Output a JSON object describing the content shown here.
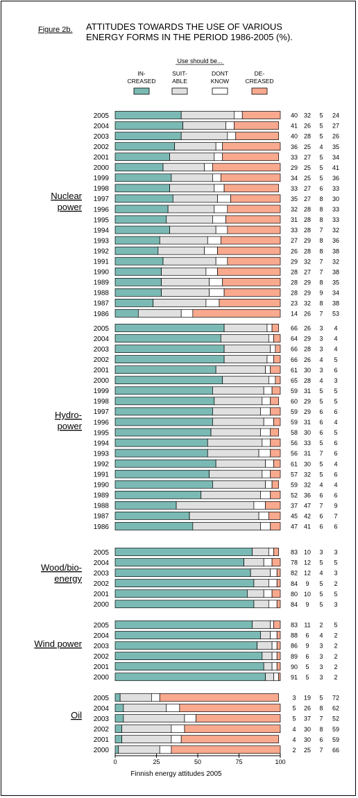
{
  "figure": {
    "label": "Figure 2b.",
    "title_line1": "ATTITUDES TOWARDS THE USE OF VARIOUS",
    "title_line2": "ENERGY FORMS IN THE PERIOD 1986-2005 (%)."
  },
  "chart_data": {
    "type": "bar",
    "stacked": true,
    "orientation": "horizontal",
    "legend_title": "Use should be...",
    "series": [
      {
        "label_lines": [
          "IN-",
          "CREASED"
        ],
        "color": "#7bbab4"
      },
      {
        "label_lines": [
          "SUIT-",
          "ABLE"
        ],
        "color": "#e0e0e0"
      },
      {
        "label_lines": [
          "DONT",
          "KNOW"
        ],
        "color": "#ffffff"
      },
      {
        "label_lines": [
          "DE-",
          "CREASED"
        ],
        "color": "#f9a98e"
      }
    ],
    "xlabel": "Finnish energy attitudes 2005",
    "xlim": [
      0,
      100
    ],
    "xticks": [
      "0",
      "25",
      "50",
      "75",
      "100"
    ],
    "groups": [
      {
        "label_lines": [
          "Nuclear",
          "power"
        ],
        "rows": [
          {
            "year": "2005",
            "values": [
              40,
              32,
              5,
              24
            ]
          },
          {
            "year": "2004",
            "values": [
              41,
              26,
              5,
              27
            ]
          },
          {
            "year": "2003",
            "values": [
              40,
              28,
              5,
              26
            ]
          },
          {
            "year": "2002",
            "values": [
              36,
              25,
              4,
              35
            ]
          },
          {
            "year": "2001",
            "values": [
              33,
              27,
              5,
              34
            ]
          },
          {
            "year": "2000",
            "values": [
              29,
              25,
              5,
              41
            ]
          },
          {
            "year": "1999",
            "values": [
              34,
              25,
              5,
              36
            ]
          },
          {
            "year": "1998",
            "values": [
              33,
              27,
              6,
              33
            ]
          },
          {
            "year": "1997",
            "values": [
              35,
              27,
              8,
              30
            ]
          },
          {
            "year": "1996",
            "values": [
              32,
              28,
              8,
              33
            ]
          },
          {
            "year": "1995",
            "values": [
              31,
              28,
              8,
              33
            ]
          },
          {
            "year": "1994",
            "values": [
              33,
              28,
              7,
              32
            ]
          },
          {
            "year": "1993",
            "values": [
              27,
              29,
              8,
              36
            ]
          },
          {
            "year": "1992",
            "values": [
              26,
              28,
              8,
              38
            ]
          },
          {
            "year": "1991",
            "values": [
              29,
              32,
              7,
              32
            ]
          },
          {
            "year": "1990",
            "values": [
              28,
              27,
              7,
              38
            ]
          },
          {
            "year": "1989",
            "values": [
              28,
              29,
              8,
              35
            ]
          },
          {
            "year": "1988",
            "values": [
              28,
              29,
              9,
              34
            ]
          },
          {
            "year": "1987",
            "values": [
              23,
              32,
              8,
              38
            ]
          },
          {
            "year": "1986",
            "values": [
              14,
              26,
              7,
              53
            ]
          }
        ]
      },
      {
        "label_lines": [
          "Hydro-",
          "power"
        ],
        "rows": [
          {
            "year": "2005",
            "values": [
              66,
              26,
              3,
              4
            ]
          },
          {
            "year": "2004",
            "values": [
              64,
              29,
              3,
              4
            ]
          },
          {
            "year": "2003",
            "values": [
              66,
              28,
              3,
              4
            ]
          },
          {
            "year": "2002",
            "values": [
              66,
              26,
              4,
              5
            ]
          },
          {
            "year": "2001",
            "values": [
              61,
              30,
              3,
              6
            ]
          },
          {
            "year": "2000",
            "values": [
              65,
              28,
              4,
              3
            ]
          },
          {
            "year": "1999",
            "values": [
              59,
              31,
              5,
              5
            ]
          },
          {
            "year": "1998",
            "values": [
              60,
              29,
              5,
              5
            ]
          },
          {
            "year": "1997",
            "values": [
              59,
              29,
              6,
              6
            ]
          },
          {
            "year": "1996",
            "values": [
              59,
              31,
              6,
              4
            ]
          },
          {
            "year": "1995",
            "values": [
              58,
              30,
              6,
              5
            ]
          },
          {
            "year": "1994",
            "values": [
              56,
              33,
              5,
              6
            ]
          },
          {
            "year": "1993",
            "values": [
              56,
              31,
              7,
              6
            ]
          },
          {
            "year": "1992",
            "values": [
              61,
              30,
              5,
              4
            ]
          },
          {
            "year": "1991",
            "values": [
              57,
              32,
              5,
              6
            ]
          },
          {
            "year": "1990",
            "values": [
              59,
              32,
              4,
              4
            ]
          },
          {
            "year": "1989",
            "values": [
              52,
              36,
              6,
              6
            ]
          },
          {
            "year": "1988",
            "values": [
              37,
              47,
              7,
              9
            ]
          },
          {
            "year": "1987",
            "values": [
              45,
              42,
              6,
              7
            ]
          },
          {
            "year": "1986",
            "values": [
              47,
              41,
              6,
              6
            ]
          }
        ]
      },
      {
        "label_lines": [
          "Wood/bio-",
          "energy"
        ],
        "rows": [
          {
            "year": "2005",
            "values": [
              83,
              10,
              3,
              3
            ]
          },
          {
            "year": "2004",
            "values": [
              78,
              12,
              5,
              5
            ]
          },
          {
            "year": "2003",
            "values": [
              82,
              12,
              4,
              3
            ]
          },
          {
            "year": "2002",
            "values": [
              84,
              9,
              5,
              2
            ]
          },
          {
            "year": "2001",
            "values": [
              80,
              10,
              5,
              5
            ]
          },
          {
            "year": "2000",
            "values": [
              84,
              9,
              5,
              3
            ]
          }
        ]
      },
      {
        "label_lines": [
          "Wind power"
        ],
        "rows": [
          {
            "year": "2005",
            "values": [
              83,
              11,
              2,
              5
            ]
          },
          {
            "year": "2004",
            "values": [
              88,
              6,
              4,
              2
            ]
          },
          {
            "year": "2003",
            "values": [
              86,
              9,
              3,
              2
            ]
          },
          {
            "year": "2002",
            "values": [
              89,
              6,
              3,
              2
            ]
          },
          {
            "year": "2001",
            "values": [
              90,
              5,
              3,
              2
            ]
          },
          {
            "year": "2000",
            "values": [
              91,
              5,
              3,
              2
            ]
          }
        ]
      },
      {
        "label_lines": [
          "Oil"
        ],
        "rows": [
          {
            "year": "2005",
            "values": [
              3,
              19,
              5,
              72
            ]
          },
          {
            "year": "2004",
            "values": [
              5,
              26,
              8,
              62
            ]
          },
          {
            "year": "2003",
            "values": [
              5,
              37,
              7,
              52
            ]
          },
          {
            "year": "2002",
            "values": [
              4,
              30,
              8,
              59
            ]
          },
          {
            "year": "2001",
            "values": [
              4,
              30,
              6,
              59
            ]
          },
          {
            "year": "2000",
            "values": [
              2,
              25,
              7,
              66
            ]
          }
        ]
      }
    ]
  }
}
